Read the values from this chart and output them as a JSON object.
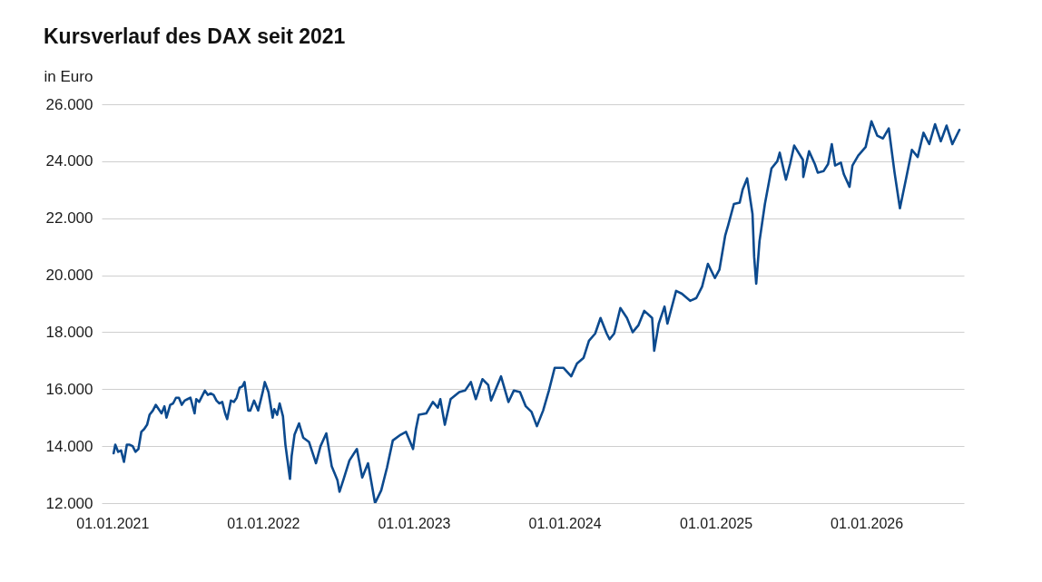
{
  "chart_data": {
    "type": "line",
    "title": "Kursverlauf des DAX seit 2021",
    "ylabel": "in Euro",
    "x": [
      "2021-01-04",
      "2021-01-08",
      "2021-01-15",
      "2021-01-22",
      "2021-01-29",
      "2021-02-05",
      "2021-02-12",
      "2021-02-19",
      "2021-02-26",
      "2021-03-05",
      "2021-03-12",
      "2021-03-19",
      "2021-03-26",
      "2021-04-01",
      "2021-04-09",
      "2021-04-16",
      "2021-04-23",
      "2021-04-30",
      "2021-05-07",
      "2021-05-12",
      "2021-05-21",
      "2021-05-28",
      "2021-06-04",
      "2021-06-11",
      "2021-06-18",
      "2021-06-25",
      "2021-07-02",
      "2021-07-09",
      "2021-07-19",
      "2021-07-23",
      "2021-07-30",
      "2021-08-06",
      "2021-08-13",
      "2021-08-20",
      "2021-08-27",
      "2021-09-03",
      "2021-09-10",
      "2021-09-17",
      "2021-09-24",
      "2021-10-01",
      "2021-10-06",
      "2021-10-15",
      "2021-10-22",
      "2021-10-29",
      "2021-11-05",
      "2021-11-12",
      "2021-11-17",
      "2021-11-26",
      "2021-12-01",
      "2021-12-10",
      "2021-12-20",
      "2021-12-31",
      "2022-01-05",
      "2022-01-14",
      "2022-01-24",
      "2022-01-28",
      "2022-02-04",
      "2022-02-10",
      "2022-02-18",
      "2022-02-24",
      "2022-03-07",
      "2022-03-11",
      "2022-03-18",
      "2022-03-29",
      "2022-04-08",
      "2022-04-22",
      "2022-05-09",
      "2022-05-20",
      "2022-06-03",
      "2022-06-16",
      "2022-06-30",
      "2022-07-05",
      "2022-07-15",
      "2022-07-29",
      "2022-08-16",
      "2022-08-29",
      "2022-09-12",
      "2022-09-29",
      "2022-10-14",
      "2022-10-28",
      "2022-11-11",
      "2022-11-30",
      "2022-12-13",
      "2022-12-30",
      "2023-01-06",
      "2023-01-13",
      "2023-01-31",
      "2023-02-16",
      "2023-02-28",
      "2023-03-06",
      "2023-03-17",
      "2023-03-31",
      "2023-04-21",
      "2023-05-05",
      "2023-05-19",
      "2023-05-31",
      "2023-06-16",
      "2023-06-30",
      "2023-07-07",
      "2023-07-31",
      "2023-08-18",
      "2023-08-31",
      "2023-09-15",
      "2023-09-29",
      "2023-10-13",
      "2023-10-26",
      "2023-11-10",
      "2023-11-24",
      "2023-12-08",
      "2023-12-29",
      "2024-01-17",
      "2024-01-31",
      "2024-02-16",
      "2024-02-29",
      "2024-03-15",
      "2024-03-28",
      "2024-04-12",
      "2024-04-19",
      "2024-04-30",
      "2024-05-15",
      "2024-05-31",
      "2024-06-14",
      "2024-06-28",
      "2024-07-12",
      "2024-07-31",
      "2024-08-05",
      "2024-08-16",
      "2024-08-30",
      "2024-09-06",
      "2024-09-27",
      "2024-10-11",
      "2024-10-31",
      "2024-11-15",
      "2024-11-29",
      "2024-12-13",
      "2024-12-30",
      "2025-01-10",
      "2025-01-24",
      "2025-01-31",
      "2025-02-14",
      "2025-02-28",
      "2025-03-07",
      "2025-03-18",
      "2025-03-31",
      "2025-04-04",
      "2025-04-09",
      "2025-04-17",
      "2025-04-30",
      "2025-05-16",
      "2025-05-30",
      "2025-06-05",
      "2025-06-20",
      "2025-06-30",
      "2025-07-10",
      "2025-07-31",
      "2025-08-01",
      "2025-08-15",
      "2025-08-29",
      "2025-09-05",
      "2025-09-19",
      "2025-09-30",
      "2025-10-09",
      "2025-10-17",
      "2025-10-31",
      "2025-11-07",
      "2025-11-21",
      "2025-11-28",
      "2025-12-12",
      "2025-12-30",
      "2026-01-13",
      "2026-01-27",
      "2026-02-10",
      "2026-02-24",
      "2026-03-10",
      "2026-03-23",
      "2026-04-07",
      "2026-04-21",
      "2026-05-05",
      "2026-05-19",
      "2026-06-02",
      "2026-06-16",
      "2026-06-30",
      "2026-07-14",
      "2026-07-28",
      "2026-08-14"
    ],
    "values": [
      13750,
      14050,
      13800,
      13850,
      13450,
      14050,
      14050,
      14000,
      13800,
      13900,
      14500,
      14600,
      14750,
      15100,
      15250,
      15450,
      15300,
      15150,
      15400,
      15000,
      15450,
      15500,
      15700,
      15700,
      15450,
      15600,
      15650,
      15700,
      15150,
      15650,
      15550,
      15750,
      15950,
      15800,
      15850,
      15800,
      15600,
      15500,
      15550,
      15150,
      14950,
      15600,
      15550,
      15700,
      16050,
      16100,
      16250,
      15250,
      15250,
      15600,
      15250,
      15900,
      16250,
      15900,
      15000,
      15300,
      15100,
      15500,
      15050,
      14050,
      12850,
      13650,
      14400,
      14800,
      14300,
      14150,
      13400,
      14000,
      14450,
      13300,
      12800,
      12400,
      12850,
      13500,
      13900,
      12900,
      13400,
      12000,
      12450,
      13250,
      14200,
      14400,
      14500,
      13900,
      14600,
      15100,
      15150,
      15550,
      15350,
      15650,
      14750,
      15650,
      15900,
      15950,
      16250,
      15650,
      16350,
      16150,
      15600,
      16450,
      15550,
      15950,
      15900,
      15400,
      15200,
      14700,
      15250,
      15950,
      16750,
      16750,
      16450,
      16900,
      17100,
      17700,
      17950,
      18500,
      17950,
      17750,
      17950,
      18850,
      18500,
      18000,
      18250,
      18750,
      18500,
      17350,
      18300,
      18900,
      18300,
      19450,
      19350,
      19100,
      19200,
      19600,
      20400,
      19900,
      20200,
      21400,
      21750,
      22500,
      22550,
      23000,
      23400,
      22150,
      20650,
      19700,
      21200,
      22500,
      23750,
      24000,
      24300,
      23350,
      23900,
      24550,
      24050,
      23450,
      24350,
      23900,
      23600,
      23650,
      23900,
      24600,
      23850,
      23950,
      23550,
      23100,
      23850,
      24200,
      24500,
      25400,
      24900,
      24800,
      25150,
      23600,
      22350,
      23400,
      24400,
      24150,
      25000,
      24600,
      25300,
      24700,
      25250,
      24600,
      25100
    ],
    "color": "#0c4a8e",
    "xlim": [
      "2020-12-06",
      "2026-08-25"
    ],
    "xticks": [
      {
        "value": "2021-01-01",
        "label": "01.01.2021"
      },
      {
        "value": "2022-01-01",
        "label": "01.01.2022"
      },
      {
        "value": "2023-01-01",
        "label": "01.01.2023"
      },
      {
        "value": "2024-01-01",
        "label": "01.01.2024"
      },
      {
        "value": "2025-01-01",
        "label": "01.01.2025"
      },
      {
        "value": "2026-01-01",
        "label": "01.01.2026"
      }
    ],
    "ylim": [
      12000,
      26000
    ],
    "yticks": [
      {
        "value": 12000,
        "label": "12.000"
      },
      {
        "value": 14000,
        "label": "14.000"
      },
      {
        "value": 16000,
        "label": "16.000"
      },
      {
        "value": 18000,
        "label": "18.000"
      },
      {
        "value": 20000,
        "label": "20.000"
      },
      {
        "value": 22000,
        "label": "22.000"
      },
      {
        "value": 24000,
        "label": "24.000"
      },
      {
        "value": 26000,
        "label": "26.000"
      }
    ],
    "grid": "y"
  }
}
